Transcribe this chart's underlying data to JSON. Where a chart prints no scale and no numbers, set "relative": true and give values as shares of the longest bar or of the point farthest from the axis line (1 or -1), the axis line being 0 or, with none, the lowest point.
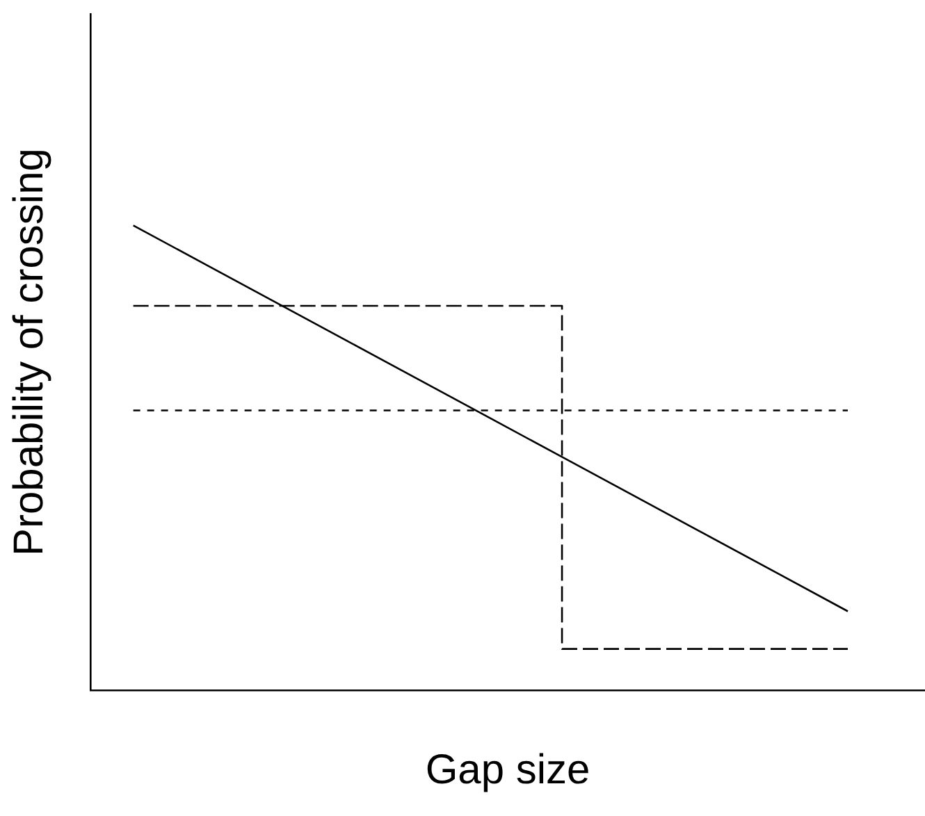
{
  "chart_data": {
    "type": "line",
    "relative": true,
    "xlabel": "Gap size",
    "ylabel": "Probability of crossing",
    "categories": [
      null,
      null,
      null,
      null,
      null,
      null,
      null,
      null,
      null,
      null,
      null
    ],
    "marker": "none",
    "grid": false,
    "legend": false,
    "series": [
      {
        "color": "#000000",
        "line_style": "solid",
        "values": [
          1,
          0.917,
          0.834,
          0.751,
          0.668,
          0.585,
          0.502,
          0.419,
          0.336,
          0.253,
          0.17
        ]
      },
      {
        "type": "step",
        "color": "#000000",
        "line_style": "dashed",
        "values": [
          0.827,
          0.827,
          0.827,
          0.827,
          0.827,
          0.827,
          0.089,
          0.089,
          0.089,
          0.089,
          0.089
        ]
      },
      {
        "color": "#000000",
        "line_style": "dotted",
        "values": [
          0.602,
          0.602,
          0.602,
          0.602,
          0.602,
          0.602,
          0.602,
          0.602,
          0.602,
          0.602,
          0.602
        ]
      }
    ]
  }
}
